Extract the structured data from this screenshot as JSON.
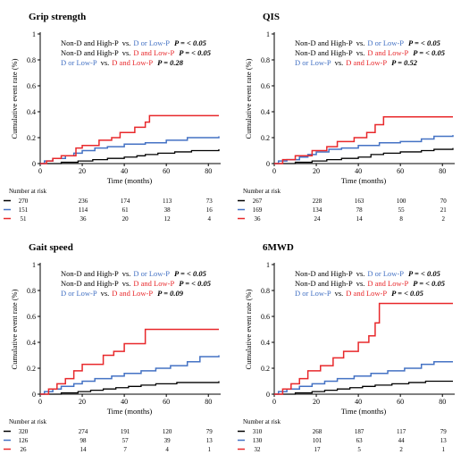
{
  "panels": [
    {
      "title": "Grip strength",
      "ylabel": "Cumulative event rate (%)",
      "xlabel": "Time (months)",
      "risk_header": "Number at risk",
      "risk_rows": [
        [
          "270",
          "236",
          "174",
          "113",
          "73"
        ],
        [
          "151",
          "114",
          "61",
          "38",
          "16"
        ],
        [
          "51",
          "36",
          "20",
          "12",
          "4"
        ]
      ],
      "annotations": [
        {
          "a": "Non-D and High-P",
          "vs": "vs.",
          "b": "D or Low-P",
          "b_series": "mid",
          "p": "P = < 0.05"
        },
        {
          "a": "Non-D and High-P",
          "vs": "vs.",
          "b": "D and Low-P",
          "b_series": "high",
          "p": "P = < 0.05"
        },
        {
          "a": "D or Low-P",
          "vs": "vs.",
          "b": "D and Low-P",
          "b_series": "high",
          "p": "P = 0.28",
          "a_series": "mid"
        }
      ]
    },
    {
      "title": "QIS",
      "ylabel": "Cumulative event rate (%)",
      "xlabel": "Time (months)",
      "risk_header": "Number at risk",
      "risk_rows": [
        [
          "267",
          "228",
          "163",
          "100",
          "70"
        ],
        [
          "169",
          "134",
          "78",
          "55",
          "21"
        ],
        [
          "36",
          "24",
          "14",
          "8",
          "2"
        ]
      ],
      "annotations": [
        {
          "a": "Non-D and High-P",
          "vs": "vs.",
          "b": "D or Low-P",
          "b_series": "mid",
          "p": "P = < 0.05"
        },
        {
          "a": "Non-D and High-P",
          "vs": "vs.",
          "b": "D and Low-P",
          "b_series": "high",
          "p": "P = < 0.05"
        },
        {
          "a": "D or Low-P",
          "vs": "vs.",
          "b": "D and Low-P",
          "b_series": "high",
          "p": "P = 0.52",
          "a_series": "mid"
        }
      ]
    },
    {
      "title": "Gait speed",
      "ylabel": "Cumulative event rate (%)",
      "xlabel": "Time (months)",
      "risk_header": "Number at risk",
      "risk_rows": [
        [
          "320",
          "274",
          "191",
          "120",
          "79"
        ],
        [
          "126",
          "98",
          "57",
          "39",
          "13"
        ],
        [
          "26",
          "14",
          "7",
          "4",
          "1"
        ]
      ],
      "annotations": [
        {
          "a": "Non-D and High-P",
          "vs": "vs.",
          "b": "D or Low-P",
          "b_series": "mid",
          "p": "P = < 0.05"
        },
        {
          "a": "Non-D and High-P",
          "vs": "vs.",
          "b": "D and Low-P",
          "b_series": "high",
          "p": "P = < 0.05"
        },
        {
          "a": "D or Low-P",
          "vs": "vs.",
          "b": "D and Low-P",
          "b_series": "high",
          "p": "P = 0.09",
          "a_series": "mid"
        }
      ]
    },
    {
      "title": "6MWD",
      "ylabel": "Cumulative event rate (%)",
      "xlabel": "Time (months)",
      "risk_header": "Number at risk",
      "risk_rows": [
        [
          "310",
          "268",
          "187",
          "117",
          "79"
        ],
        [
          "130",
          "101",
          "63",
          "44",
          "13"
        ],
        [
          "32",
          "17",
          "5",
          "2",
          "1"
        ]
      ],
      "annotations": [
        {
          "a": "Non-D and High-P",
          "vs": "vs.",
          "b": "D or Low-P",
          "b_series": "mid",
          "p": "P = < 0.05"
        },
        {
          "a": "Non-D and High-P",
          "vs": "vs.",
          "b": "D and Low-P",
          "b_series": "high",
          "p": "P = < 0.05"
        },
        {
          "a": "D or Low-P",
          "vs": "vs.",
          "b": "D and Low-P",
          "b_series": "high",
          "p": "P = < 0.05",
          "a_series": "mid"
        }
      ]
    }
  ],
  "colors": {
    "low": "#000000",
    "mid": "#4472C4",
    "high": "#E8282B"
  },
  "chart_data": [
    {
      "type": "line",
      "title": "Grip strength",
      "xlabel": "Time (months)",
      "ylabel": "Cumulative event rate (%)",
      "xlim": [
        0,
        85
      ],
      "ylim": [
        0,
        1.0
      ],
      "xticks": [
        0,
        20,
        40,
        60,
        80
      ],
      "yticks": [
        0,
        0.2,
        0.4,
        0.6,
        0.8,
        1.0
      ],
      "step": true,
      "series": [
        {
          "key": "low",
          "points": [
            [
              0,
              0
            ],
            [
              10,
              0.01
            ],
            [
              18,
              0.02
            ],
            [
              25,
              0.03
            ],
            [
              32,
              0.04
            ],
            [
              40,
              0.05
            ],
            [
              46,
              0.06
            ],
            [
              50,
              0.07
            ],
            [
              56,
              0.08
            ],
            [
              64,
              0.09
            ],
            [
              72,
              0.1
            ],
            [
              85,
              0.11
            ]
          ]
        },
        {
          "key": "mid",
          "points": [
            [
              0,
              0
            ],
            [
              2,
              0.02
            ],
            [
              6,
              0.04
            ],
            [
              12,
              0.06
            ],
            [
              16,
              0.08
            ],
            [
              20,
              0.1
            ],
            [
              26,
              0.12
            ],
            [
              32,
              0.13
            ],
            [
              40,
              0.15
            ],
            [
              50,
              0.16
            ],
            [
              60,
              0.18
            ],
            [
              70,
              0.2
            ],
            [
              85,
              0.21
            ]
          ]
        },
        {
          "key": "high",
          "points": [
            [
              0,
              0
            ],
            [
              3,
              0.02
            ],
            [
              6,
              0.04
            ],
            [
              10,
              0.06
            ],
            [
              17,
              0.12
            ],
            [
              20,
              0.14
            ],
            [
              28,
              0.18
            ],
            [
              34,
              0.2
            ],
            [
              38,
              0.24
            ],
            [
              45,
              0.28
            ],
            [
              50,
              0.32
            ],
            [
              52,
              0.37
            ],
            [
              85,
              0.37
            ]
          ]
        }
      ]
    },
    {
      "type": "line",
      "title": "QIS",
      "xlabel": "Time (months)",
      "ylabel": "Cumulative event rate (%)",
      "xlim": [
        0,
        85
      ],
      "ylim": [
        0,
        1.0
      ],
      "xticks": [
        0,
        20,
        40,
        60,
        80
      ],
      "yticks": [
        0,
        0.2,
        0.4,
        0.6,
        0.8,
        1.0
      ],
      "step": true,
      "series": [
        {
          "key": "low",
          "points": [
            [
              0,
              0
            ],
            [
              10,
              0.01
            ],
            [
              18,
              0.02
            ],
            [
              25,
              0.03
            ],
            [
              32,
              0.04
            ],
            [
              40,
              0.05
            ],
            [
              46,
              0.07
            ],
            [
              52,
              0.08
            ],
            [
              60,
              0.09
            ],
            [
              70,
              0.1
            ],
            [
              76,
              0.11
            ],
            [
              85,
              0.12
            ]
          ]
        },
        {
          "key": "mid",
          "points": [
            [
              0,
              0
            ],
            [
              2,
              0.02
            ],
            [
              6,
              0.03
            ],
            [
              12,
              0.05
            ],
            [
              16,
              0.07
            ],
            [
              20,
              0.09
            ],
            [
              26,
              0.11
            ],
            [
              32,
              0.12
            ],
            [
              40,
              0.14
            ],
            [
              50,
              0.16
            ],
            [
              60,
              0.17
            ],
            [
              70,
              0.19
            ],
            [
              76,
              0.21
            ],
            [
              85,
              0.22
            ]
          ]
        },
        {
          "key": "high",
          "points": [
            [
              0,
              0
            ],
            [
              4,
              0.03
            ],
            [
              10,
              0.06
            ],
            [
              18,
              0.1
            ],
            [
              25,
              0.13
            ],
            [
              30,
              0.17
            ],
            [
              38,
              0.2
            ],
            [
              44,
              0.24
            ],
            [
              48,
              0.3
            ],
            [
              52,
              0.36
            ],
            [
              85,
              0.36
            ]
          ]
        }
      ]
    },
    {
      "type": "line",
      "title": "Gait speed",
      "xlabel": "Time (months)",
      "ylabel": "Cumulative event rate (%)",
      "xlim": [
        0,
        85
      ],
      "ylim": [
        0,
        1.0
      ],
      "xticks": [
        0,
        20,
        40,
        60,
        80
      ],
      "yticks": [
        0,
        0.2,
        0.4,
        0.6,
        0.8,
        1.0
      ],
      "step": true,
      "series": [
        {
          "key": "low",
          "points": [
            [
              0,
              0
            ],
            [
              10,
              0.01
            ],
            [
              18,
              0.02
            ],
            [
              24,
              0.03
            ],
            [
              30,
              0.04
            ],
            [
              36,
              0.05
            ],
            [
              42,
              0.06
            ],
            [
              48,
              0.07
            ],
            [
              55,
              0.08
            ],
            [
              65,
              0.09
            ],
            [
              85,
              0.1
            ]
          ]
        },
        {
          "key": "mid",
          "points": [
            [
              0,
              0
            ],
            [
              2,
              0.02
            ],
            [
              6,
              0.04
            ],
            [
              10,
              0.06
            ],
            [
              16,
              0.08
            ],
            [
              20,
              0.1
            ],
            [
              26,
              0.12
            ],
            [
              34,
              0.14
            ],
            [
              40,
              0.16
            ],
            [
              48,
              0.18
            ],
            [
              55,
              0.2
            ],
            [
              62,
              0.22
            ],
            [
              70,
              0.25
            ],
            [
              76,
              0.29
            ],
            [
              85,
              0.3
            ]
          ]
        },
        {
          "key": "high",
          "points": [
            [
              0,
              0
            ],
            [
              4,
              0.04
            ],
            [
              8,
              0.08
            ],
            [
              12,
              0.12
            ],
            [
              16,
              0.18
            ],
            [
              20,
              0.23
            ],
            [
              30,
              0.3
            ],
            [
              35,
              0.33
            ],
            [
              40,
              0.39
            ],
            [
              50,
              0.5
            ],
            [
              85,
              0.5
            ]
          ]
        }
      ]
    },
    {
      "type": "line",
      "title": "6MWD",
      "xlabel": "Time (months)",
      "ylabel": "Cumulative event rate (%)",
      "xlim": [
        0,
        85
      ],
      "ylim": [
        0,
        1.0
      ],
      "xticks": [
        0,
        20,
        40,
        60,
        80
      ],
      "yticks": [
        0,
        0.2,
        0.4,
        0.6,
        0.8,
        1.0
      ],
      "step": true,
      "series": [
        {
          "key": "low",
          "points": [
            [
              0,
              0
            ],
            [
              10,
              0.01
            ],
            [
              18,
              0.02
            ],
            [
              24,
              0.03
            ],
            [
              30,
              0.04
            ],
            [
              36,
              0.05
            ],
            [
              42,
              0.06
            ],
            [
              48,
              0.07
            ],
            [
              56,
              0.08
            ],
            [
              64,
              0.09
            ],
            [
              72,
              0.1
            ],
            [
              85,
              0.1
            ]
          ]
        },
        {
          "key": "mid",
          "points": [
            [
              0,
              0
            ],
            [
              2,
              0.02
            ],
            [
              6,
              0.04
            ],
            [
              12,
              0.06
            ],
            [
              18,
              0.08
            ],
            [
              24,
              0.1
            ],
            [
              30,
              0.12
            ],
            [
              38,
              0.14
            ],
            [
              46,
              0.16
            ],
            [
              54,
              0.18
            ],
            [
              62,
              0.2
            ],
            [
              70,
              0.23
            ],
            [
              76,
              0.25
            ],
            [
              85,
              0.25
            ]
          ]
        },
        {
          "key": "high",
          "points": [
            [
              0,
              0
            ],
            [
              4,
              0.04
            ],
            [
              8,
              0.08
            ],
            [
              12,
              0.12
            ],
            [
              16,
              0.18
            ],
            [
              22,
              0.22
            ],
            [
              28,
              0.28
            ],
            [
              33,
              0.33
            ],
            [
              40,
              0.4
            ],
            [
              45,
              0.45
            ],
            [
              48,
              0.55
            ],
            [
              50,
              0.7
            ],
            [
              85,
              0.7
            ]
          ]
        }
      ]
    }
  ]
}
